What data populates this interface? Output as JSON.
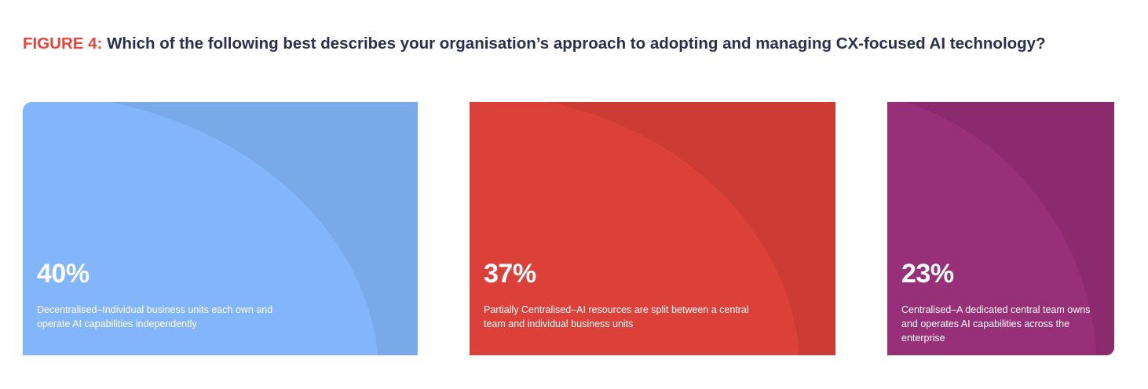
{
  "title": {
    "prefix": "FIGURE 4:",
    "text": "Which of the following best describes your organisation’s approach to adopting and managing CX-focused AI technology?"
  },
  "chart_data": {
    "type": "bar",
    "categories": [
      "Decentralised–Individual business units each own and operate AI capabilities independently",
      "Partially Centralised–AI resources are split between a central team and individual business units",
      "Centralised–A dedicated central team owns and operates AI capabilities across the enterprise"
    ],
    "values": [
      40,
      37,
      23
    ],
    "value_labels": [
      "40%",
      "37%",
      "23%"
    ],
    "unit": "%",
    "colors": [
      {
        "base": "#7aa9ea",
        "light": "#82b5fa"
      },
      {
        "base": "#cc3b34",
        "light": "#db4139"
      },
      {
        "base": "#8b2a6e",
        "light": "#982f79"
      }
    ]
  }
}
